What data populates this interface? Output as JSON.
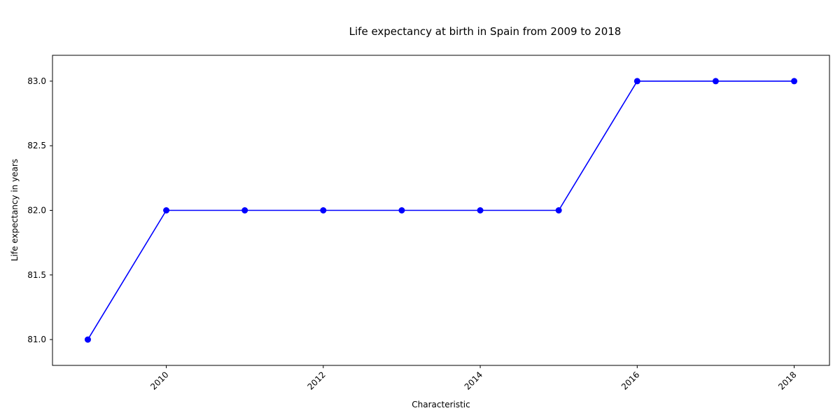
{
  "chart_data": {
    "type": "line",
    "title": "Life expectancy at birth in Spain from 2009 to 2018",
    "xlabel": "Characteristic",
    "ylabel": "Life expectancy in years",
    "x": [
      2009,
      2010,
      2011,
      2012,
      2013,
      2014,
      2015,
      2016,
      2017,
      2018
    ],
    "series": [
      {
        "values": [
          81,
          82,
          82,
          82,
          82,
          82,
          82,
          83,
          83,
          83
        ],
        "color": "#0000ff",
        "marker": "circle"
      }
    ],
    "xlim": [
      2008.55,
      2018.45
    ],
    "ylim": [
      80.8,
      83.2
    ],
    "xticks": [
      2010,
      2012,
      2014,
      2016,
      2018
    ],
    "xtick_labels": [
      "2010",
      "2012",
      "2014",
      "2016",
      "2018"
    ],
    "yticks": [
      81.0,
      81.5,
      82.0,
      82.5,
      83.0
    ],
    "ytick_labels": [
      "81.0",
      "81.5",
      "82.0",
      "82.5",
      "83.0"
    ],
    "grid": false,
    "legend": "none"
  }
}
